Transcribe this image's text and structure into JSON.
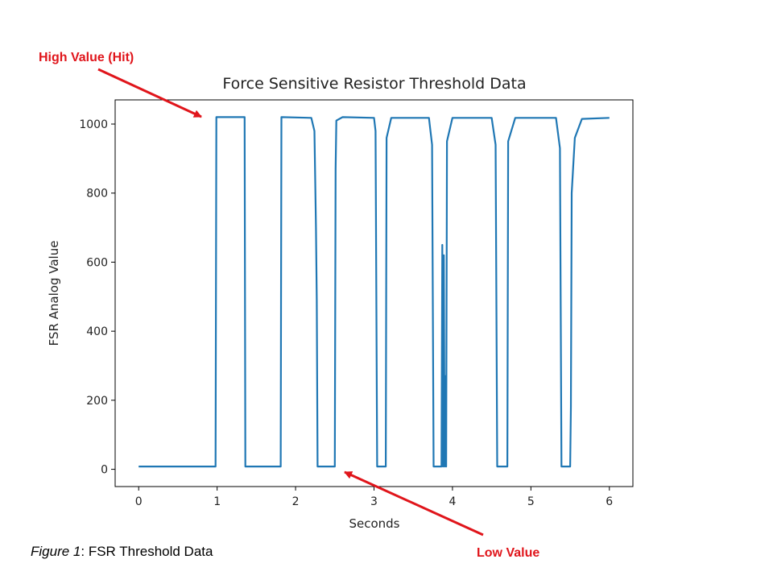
{
  "figure_caption": {
    "label": "Figure 1",
    "text": ": FSR Threshold Data"
  },
  "annotations": {
    "high": {
      "text": "High Value (Hit)",
      "color": "#e0151b"
    },
    "low": {
      "text": "Low Value",
      "color": "#e0151b"
    }
  },
  "colors": {
    "line": "#1f77b4",
    "annotation": "#e0151b"
  },
  "chart_data": {
    "type": "line",
    "title": "Force Sensitive Resistor Threshold Data",
    "xlabel": "Seconds",
    "ylabel": "FSR Analog Value",
    "xlim": [
      -0.3,
      6.3
    ],
    "ylim": [
      -50,
      1070
    ],
    "xticks": [
      0,
      1,
      2,
      3,
      4,
      5,
      6
    ],
    "yticks": [
      0,
      200,
      400,
      600,
      800,
      1000
    ],
    "grid": false,
    "legend": "none",
    "series": [
      {
        "points": [
          [
            0,
            8
          ],
          [
            0.98,
            8
          ],
          [
            0.99,
            1020
          ],
          [
            1.35,
            1020
          ],
          [
            1.36,
            8
          ],
          [
            1.81,
            8
          ],
          [
            1.82,
            1020
          ],
          [
            2.2,
            1018
          ],
          [
            2.24,
            980
          ],
          [
            2.26,
            700
          ],
          [
            2.27,
            490
          ],
          [
            2.28,
            8
          ],
          [
            2.5,
            8
          ],
          [
            2.51,
            870
          ],
          [
            2.52,
            1010
          ],
          [
            2.6,
            1020
          ],
          [
            3.0,
            1018
          ],
          [
            3.02,
            980
          ],
          [
            3.04,
            8
          ],
          [
            3.15,
            8
          ],
          [
            3.16,
            960
          ],
          [
            3.22,
            1018
          ],
          [
            3.7,
            1018
          ],
          [
            3.74,
            940
          ],
          [
            3.76,
            8
          ],
          [
            3.86,
            8
          ],
          [
            3.87,
            650
          ],
          [
            3.88,
            8
          ],
          [
            3.89,
            620
          ],
          [
            3.9,
            8
          ],
          [
            3.91,
            270
          ],
          [
            3.92,
            8
          ],
          [
            3.93,
            950
          ],
          [
            4.0,
            1018
          ],
          [
            4.5,
            1018
          ],
          [
            4.55,
            940
          ],
          [
            4.57,
            8
          ],
          [
            4.7,
            8
          ],
          [
            4.71,
            950
          ],
          [
            4.8,
            1018
          ],
          [
            5.32,
            1018
          ],
          [
            5.37,
            930
          ],
          [
            5.39,
            8
          ],
          [
            5.5,
            8
          ],
          [
            5.51,
            180
          ],
          [
            5.52,
            800
          ],
          [
            5.56,
            960
          ],
          [
            5.65,
            1015
          ],
          [
            6.0,
            1018
          ]
        ]
      }
    ]
  }
}
